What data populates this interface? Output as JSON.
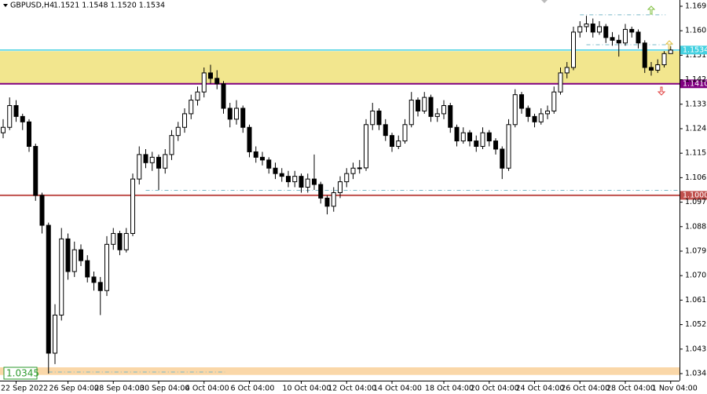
{
  "chart_data": {
    "type": "candlestick",
    "symbol": "GBPUSD,H4",
    "header_prices": "1.1521 1.1548 1.1520 1.1534",
    "categories": [
      null,
      null,
      "22 Sep 2022",
      null,
      null,
      null,
      null,
      null,
      null,
      null,
      "26 Sep 04:00",
      null,
      null,
      null,
      null,
      null,
      null,
      "28 Sep 04:00",
      null,
      null,
      null,
      null,
      null,
      null,
      "30 Sep 04:00",
      null,
      null,
      null,
      null,
      null,
      null,
      "4 Oct 04:00",
      null,
      null,
      null,
      null,
      null,
      null,
      "6 Oct 04:00",
      null,
      null,
      null,
      null,
      null,
      null,
      null,
      "10 Oct 04:00",
      null,
      null,
      null,
      null,
      null,
      null,
      "12 Oct 04:00",
      null,
      null,
      null,
      null,
      null,
      null,
      "14 Oct 04:00",
      null,
      null,
      null,
      null,
      null,
      null,
      null,
      "18 Oct 04:00",
      null,
      null,
      null,
      null,
      null,
      null,
      "20 Oct 04:00",
      null,
      null,
      null,
      null,
      null,
      null,
      "24 Oct 04:00",
      null,
      null,
      null,
      null,
      null,
      null,
      "26 Oct 04:00",
      null,
      null,
      null,
      null,
      null,
      null,
      "28 Oct 04:00",
      null,
      null,
      null,
      null,
      null,
      null,
      "1 Nov 04:00"
    ],
    "ohlc": [
      [
        1.123,
        1.128,
        1.121,
        1.125
      ],
      [
        1.125,
        1.136,
        1.124,
        1.133
      ],
      [
        1.133,
        1.135,
        1.127,
        1.129
      ],
      [
        1.129,
        1.13,
        1.124,
        1.127
      ],
      [
        1.127,
        1.128,
        1.116,
        1.118
      ],
      [
        1.118,
        1.119,
        1.098,
        1.1
      ],
      [
        1.1,
        1.101,
        1.086,
        1.089
      ],
      [
        1.089,
        1.09,
        1.0345,
        1.042
      ],
      [
        1.042,
        1.06,
        1.038,
        1.056
      ],
      [
        1.056,
        1.088,
        1.054,
        1.084
      ],
      [
        1.084,
        1.086,
        1.069,
        1.072
      ],
      [
        1.072,
        1.083,
        1.07,
        1.08
      ],
      [
        1.08,
        1.082,
        1.074,
        1.076
      ],
      [
        1.076,
        1.078,
        1.068,
        1.07
      ],
      [
        1.07,
        1.072,
        1.065,
        1.068
      ],
      [
        1.068,
        1.07,
        1.056,
        1.065
      ],
      [
        1.065,
        1.085,
        1.063,
        1.082
      ],
      [
        1.082,
        1.088,
        1.08,
        1.086
      ],
      [
        1.086,
        1.087,
        1.078,
        1.08
      ],
      [
        1.08,
        1.088,
        1.079,
        1.086
      ],
      [
        1.086,
        1.108,
        1.085,
        1.106
      ],
      [
        1.106,
        1.118,
        1.104,
        1.115
      ],
      [
        1.115,
        1.117,
        1.11,
        1.112
      ],
      [
        1.112,
        1.116,
        1.109,
        1.114
      ],
      [
        1.114,
        1.115,
        1.102,
        1.11
      ],
      [
        1.11,
        1.117,
        1.108,
        1.115
      ],
      [
        1.115,
        1.124,
        1.113,
        1.122
      ],
      [
        1.122,
        1.127,
        1.12,
        1.125
      ],
      [
        1.125,
        1.132,
        1.123,
        1.13
      ],
      [
        1.13,
        1.137,
        1.128,
        1.135
      ],
      [
        1.135,
        1.14,
        1.133,
        1.138
      ],
      [
        1.138,
        1.147,
        1.136,
        1.145
      ],
      [
        1.145,
        1.148,
        1.141,
        1.143
      ],
      [
        1.143,
        1.146,
        1.139,
        1.141
      ],
      [
        1.141,
        1.142,
        1.13,
        1.132
      ],
      [
        1.132,
        1.134,
        1.125,
        1.128
      ],
      [
        1.128,
        1.135,
        1.126,
        1.132
      ],
      [
        1.132,
        1.133,
        1.123,
        1.125
      ],
      [
        1.125,
        1.126,
        1.114,
        1.116
      ],
      [
        1.116,
        1.118,
        1.112,
        1.114
      ],
      [
        1.114,
        1.116,
        1.111,
        1.113
      ],
      [
        1.113,
        1.114,
        1.108,
        1.11
      ],
      [
        1.11,
        1.112,
        1.106,
        1.108
      ],
      [
        1.108,
        1.11,
        1.105,
        1.107
      ],
      [
        1.107,
        1.109,
        1.103,
        1.105
      ],
      [
        1.105,
        1.109,
        1.103,
        1.107
      ],
      [
        1.107,
        1.108,
        1.101,
        1.103
      ],
      [
        1.103,
        1.108,
        1.101,
        1.106
      ],
      [
        1.106,
        1.115,
        1.102,
        1.104
      ],
      [
        1.104,
        1.105,
        1.097,
        1.099
      ],
      [
        1.099,
        1.1,
        1.093,
        1.096
      ],
      [
        1.096,
        1.103,
        1.094,
        1.101
      ],
      [
        1.101,
        1.107,
        1.099,
        1.105
      ],
      [
        1.105,
        1.11,
        1.103,
        1.108
      ],
      [
        1.108,
        1.112,
        1.106,
        1.11
      ],
      [
        1.11,
        1.113,
        1.108,
        1.1101
      ],
      [
        1.1101,
        1.128,
        1.109,
        1.126
      ],
      [
        1.126,
        1.134,
        1.124,
        1.131
      ],
      [
        1.131,
        1.132,
        1.124,
        1.126
      ],
      [
        1.126,
        1.128,
        1.12,
        1.122
      ],
      [
        1.122,
        1.123,
        1.116,
        1.118
      ],
      [
        1.118,
        1.122,
        1.117,
        1.12
      ],
      [
        1.12,
        1.128,
        1.119,
        1.126
      ],
      [
        1.126,
        1.138,
        1.125,
        1.135
      ],
      [
        1.135,
        1.136,
        1.129,
        1.131
      ],
      [
        1.131,
        1.138,
        1.13,
        1.136
      ],
      [
        1.136,
        1.137,
        1.127,
        1.129
      ],
      [
        1.129,
        1.132,
        1.127,
        1.13
      ],
      [
        1.13,
        1.135,
        1.128,
        1.133
      ],
      [
        1.133,
        1.134,
        1.123,
        1.125
      ],
      [
        1.125,
        1.126,
        1.118,
        1.12
      ],
      [
        1.12,
        1.125,
        1.119,
        1.123
      ],
      [
        1.123,
        1.124,
        1.118,
        1.12
      ],
      [
        1.12,
        1.122,
        1.116,
        1.118
      ],
      [
        1.118,
        1.125,
        1.117,
        1.123
      ],
      [
        1.123,
        1.124,
        1.118,
        1.12
      ],
      [
        1.12,
        1.121,
        1.115,
        1.117
      ],
      [
        1.117,
        1.118,
        1.106,
        1.11
      ],
      [
        1.11,
        1.128,
        1.109,
        1.126
      ],
      [
        1.126,
        1.139,
        1.125,
        1.137
      ],
      [
        1.137,
        1.138,
        1.13,
        1.132
      ],
      [
        1.132,
        1.133,
        1.127,
        1.129
      ],
      [
        1.129,
        1.13,
        1.125,
        1.127
      ],
      [
        1.127,
        1.132,
        1.126,
        1.13
      ],
      [
        1.13,
        1.133,
        1.128,
        1.131
      ],
      [
        1.131,
        1.14,
        1.13,
        1.138
      ],
      [
        1.138,
        1.147,
        1.137,
        1.145
      ],
      [
        1.145,
        1.149,
        1.143,
        1.147
      ],
      [
        1.147,
        1.162,
        1.146,
        1.16
      ],
      [
        1.16,
        1.164,
        1.158,
        1.162
      ],
      [
        1.162,
        1.166,
        1.16,
        1.163
      ],
      [
        1.163,
        1.165,
        1.158,
        1.16
      ],
      [
        1.16,
        1.164,
        1.159,
        1.162
      ],
      [
        1.162,
        1.163,
        1.156,
        1.158
      ],
      [
        1.158,
        1.16,
        1.155,
        1.157
      ],
      [
        1.157,
        1.159,
        1.151,
        1.156
      ],
      [
        1.156,
        1.163,
        1.155,
        1.161
      ],
      [
        1.161,
        1.162,
        1.158,
        1.16
      ],
      [
        1.16,
        1.161,
        1.154,
        1.156
      ],
      [
        1.156,
        1.157,
        1.145,
        1.147
      ],
      [
        1.147,
        1.149,
        1.144,
        1.146
      ],
      [
        1.146,
        1.15,
        1.145,
        1.148
      ],
      [
        1.148,
        1.153,
        1.147,
        1.1521
      ],
      [
        1.1521,
        1.1548,
        1.152,
        1.1534
      ]
    ],
    "up_color": "#ffffff",
    "down_color": "#000000",
    "ylim": [
      1.0319,
      1.1718
    ],
    "yticks": [
      1.1695,
      1.1605,
      1.1515,
      1.1425,
      1.1335,
      1.1245,
      1.1155,
      1.1065,
      1.0975,
      1.0885,
      1.0795,
      1.0705,
      1.0615,
      1.0525,
      1.0435,
      1.0345
    ],
    "zones": [
      {
        "low": 1.141,
        "high": 1.153,
        "color": "#f2e68e"
      },
      {
        "low": 1.034,
        "high": 1.0368,
        "color": "#fad7a8"
      }
    ],
    "levels": [
      {
        "price": {
          "value": 1.141,
          "label": "1.1410"
        },
        "color": "#800080"
      },
      {
        "price": {
          "value": 1.1,
          "label": "1.1000"
        },
        "color": "#c0504d"
      },
      {
        "price": 1.0345,
        "color": "#2e9a2e"
      }
    ],
    "dashed_levels": [
      1.102,
      1.1665,
      1.1555,
      1.0352
    ],
    "price_line_color": "#44d0e0"
  }
}
